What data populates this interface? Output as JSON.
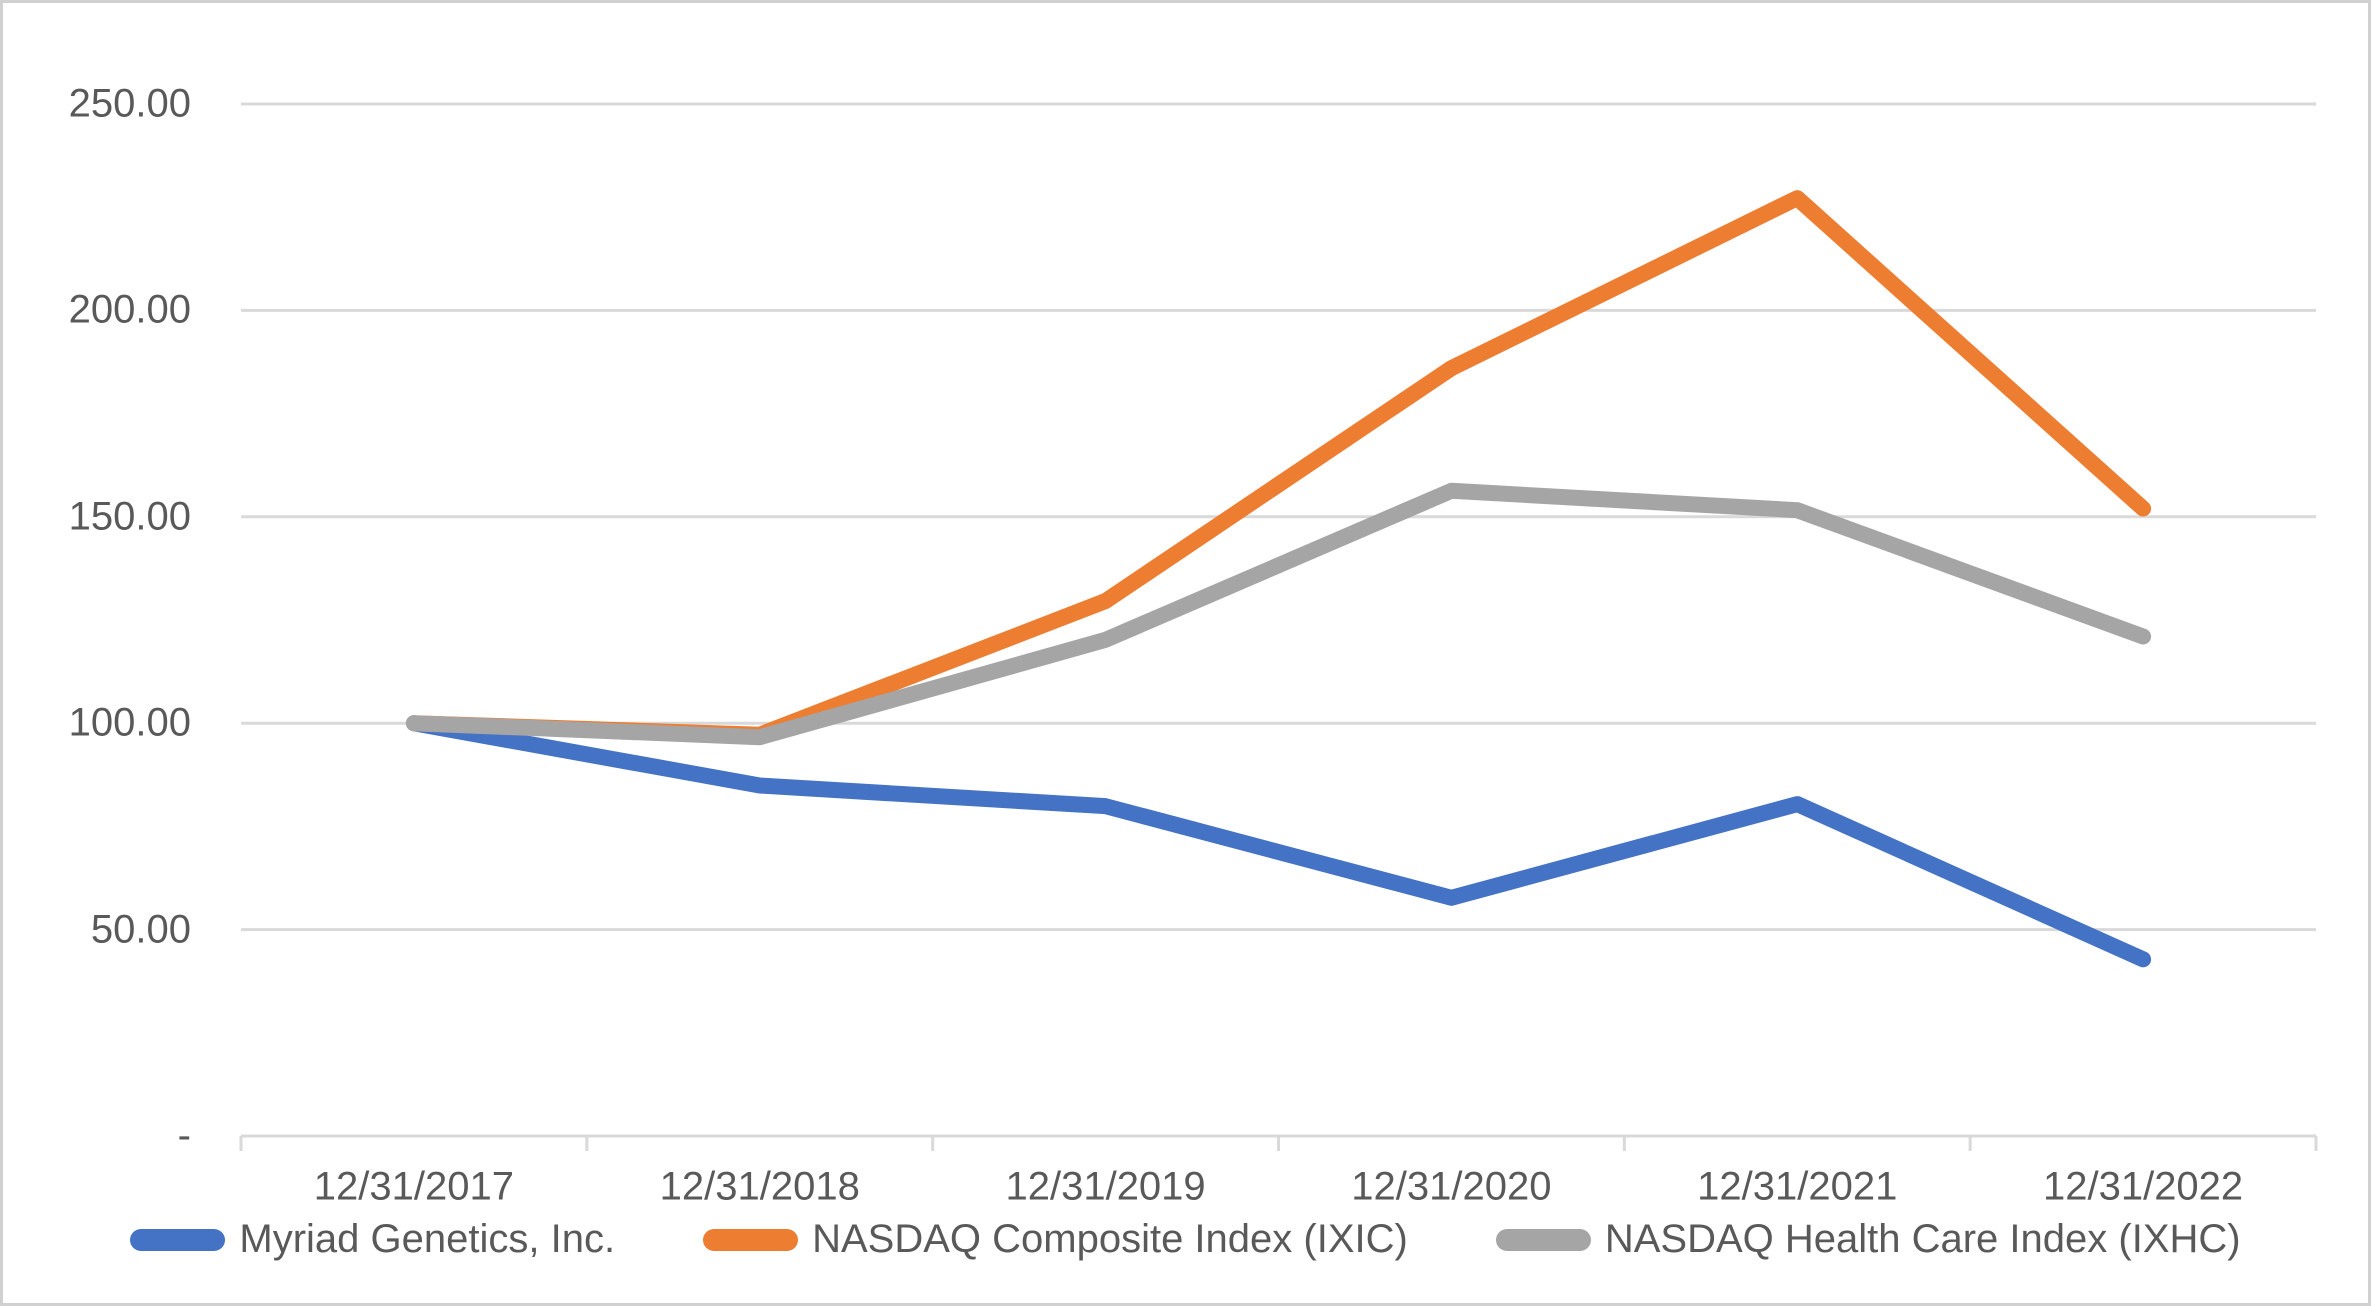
{
  "chart_data": {
    "type": "line",
    "title": "",
    "categories": [
      "12/31/2017",
      "12/31/2018",
      "12/31/2019",
      "12/31/2020",
      "12/31/2021",
      "12/31/2022"
    ],
    "series": [
      {
        "name": "Myriad Genetics, Inc.",
        "color": "#4472C4",
        "values": [
          100.0,
          84.9,
          79.9,
          57.7,
          80.4,
          42.8
        ]
      },
      {
        "name": "NASDAQ Composite Index (IXIC)",
        "color": "#ED7D31",
        "values": [
          100.0,
          97.2,
          129.6,
          186.0,
          227.2,
          152.0
        ]
      },
      {
        "name": "NASDAQ Health Care Index (IXHC)",
        "color": "#A5A5A5",
        "values": [
          100.0,
          96.6,
          120.2,
          156.3,
          151.6,
          121.0
        ]
      }
    ],
    "y_ticks": [
      {
        "label": "250.00",
        "value": 250
      },
      {
        "label": "200.00",
        "value": 200
      },
      {
        "label": "150.00",
        "value": 150
      },
      {
        "label": "100.00",
        "value": 100
      },
      {
        "label": "50.00",
        "value": 50
      },
      {
        "label": "-",
        "value": 0
      }
    ],
    "ylim": [
      0,
      250
    ],
    "xlabel": "",
    "ylabel": "",
    "grid": true,
    "legend_position": "bottom"
  },
  "colors": {
    "grid": "#D9D9D9",
    "axis": "#D9D9D9",
    "tick_text": "#595959",
    "background": "#FFFFFF",
    "frame_border": "#D0D0D0"
  }
}
